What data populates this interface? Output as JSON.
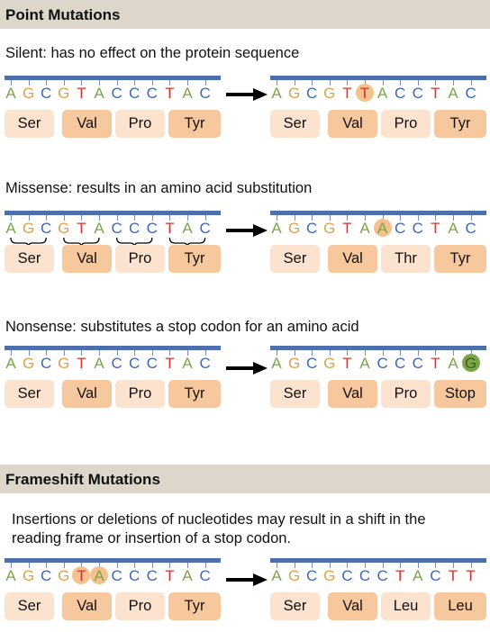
{
  "sections": {
    "point_title": "Point Mutations",
    "frameshift_title": "Frameshift Mutations"
  },
  "rows": [
    {
      "description": "Silent: has no effect on the protein sequence",
      "left": {
        "bases": [
          "A",
          "G",
          "C",
          "G",
          "T",
          "A",
          "C",
          "C",
          "C",
          "T",
          "A",
          "C"
        ],
        "codons": [
          "Ser",
          "Val",
          "Pro",
          "Tyr"
        ],
        "highlight": [],
        "brackets": false
      },
      "right": {
        "bases": [
          "A",
          "G",
          "C",
          "G",
          "T",
          "T",
          "A",
          "C",
          "C",
          "T",
          "A",
          "C"
        ],
        "codons": [
          "Ser",
          "Val",
          "Pro",
          "Tyr"
        ],
        "highlight": [
          5
        ],
        "brackets": false
      }
    },
    {
      "description": "Missense: results in an amino acid substitution",
      "left": {
        "bases": [
          "A",
          "G",
          "C",
          "G",
          "T",
          "A",
          "C",
          "C",
          "C",
          "T",
          "A",
          "C"
        ],
        "codons": [
          "Ser",
          "Val",
          "Pro",
          "Tyr"
        ],
        "highlight": [],
        "brackets": true
      },
      "right": {
        "bases": [
          "A",
          "G",
          "C",
          "G",
          "T",
          "A",
          "A",
          "C",
          "C",
          "T",
          "A",
          "C"
        ],
        "codons": [
          "Ser",
          "Val",
          "Thr",
          "Tyr"
        ],
        "highlight": [
          6
        ],
        "brackets": false
      }
    },
    {
      "description": "Nonsense: substitutes a stop codon for an amino acid",
      "left": {
        "bases": [
          "A",
          "G",
          "C",
          "G",
          "T",
          "A",
          "C",
          "C",
          "C",
          "T",
          "A",
          "C"
        ],
        "codons": [
          "Ser",
          "Val",
          "Pro",
          "Tyr"
        ],
        "highlight": [],
        "brackets": false
      },
      "right": {
        "bases": [
          "A",
          "G",
          "C",
          "G",
          "T",
          "A",
          "C",
          "C",
          "C",
          "T",
          "A",
          "G"
        ],
        "codons": [
          "Ser",
          "Val",
          "Pro",
          "Stop"
        ],
        "highlight": [
          11
        ],
        "highlight_style": "green",
        "brackets": false
      }
    },
    {
      "description_line1": "Insertions or deletions of nucleotides may result in a shift in the",
      "description_line2": "reading frame or insertion of a stop codon.",
      "left": {
        "bases": [
          "A",
          "G",
          "C",
          "G",
          "T",
          "A",
          "C",
          "C",
          "C",
          "T",
          "A",
          "C"
        ],
        "codons": [
          "Ser",
          "Val",
          "Pro",
          "Tyr"
        ],
        "highlight": [
          4,
          5
        ],
        "brackets": false
      },
      "right": {
        "bases": [
          "A",
          "G",
          "C",
          "G",
          "C",
          "C",
          "C",
          "T",
          "A",
          "C",
          "T",
          "T"
        ],
        "codons": [
          "Ser",
          "Val",
          "Leu",
          "Leu"
        ],
        "highlight": [],
        "brackets": false
      }
    }
  ],
  "colors": {
    "A": "#7aa54a",
    "G": "#e0a248",
    "C": "#3f67b5",
    "T": "#d9322e",
    "strand_bar": "#4e6fae",
    "codon_light": "#fbe3cf",
    "codon_dark": "#f7c89e",
    "header_bg": "#dcd6cb",
    "mutation_highlight": "#f5c28e",
    "stop_highlight": "#7aa54a"
  }
}
